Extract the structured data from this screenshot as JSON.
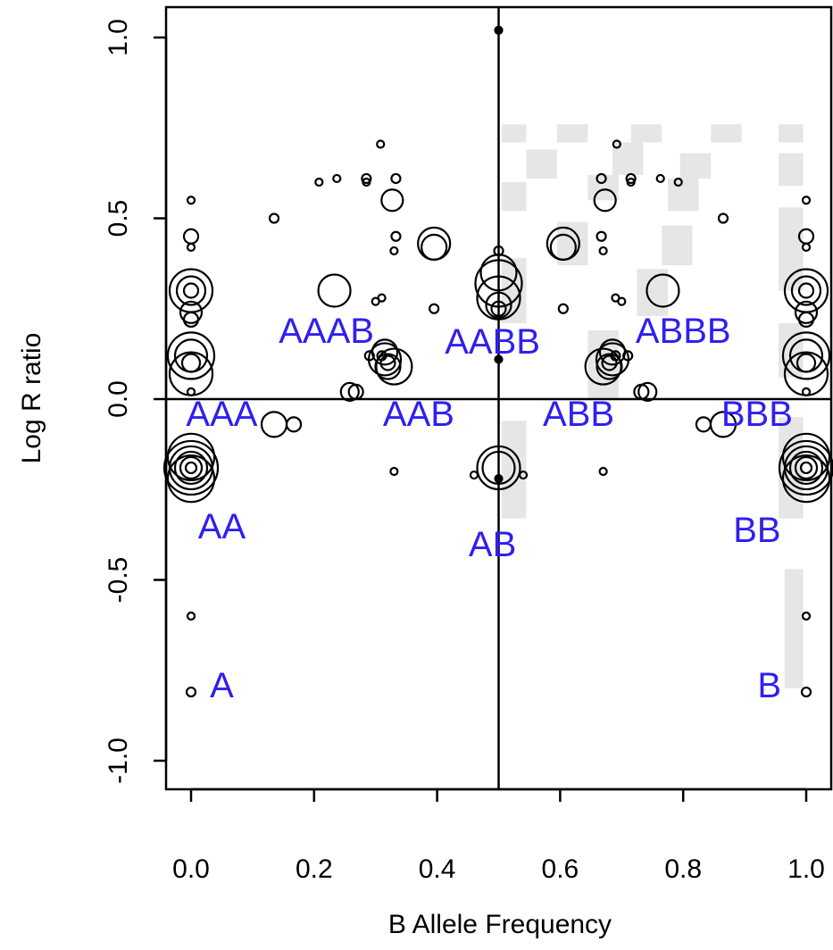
{
  "chart_data": {
    "type": "scatter",
    "title": "",
    "xlabel": "B Allele Frequency",
    "ylabel": "Log R ratio",
    "xlim": [
      -0.04,
      1.04
    ],
    "ylim": [
      -1.08,
      1.08
    ],
    "x_ticks": [
      0.0,
      0.2,
      0.4,
      0.6,
      0.8,
      1.0
    ],
    "x_tick_labels": [
      "0.0",
      "0.2",
      "0.4",
      "0.6",
      "0.8",
      "1.0"
    ],
    "y_ticks": [
      -1.0,
      -0.5,
      0.0,
      0.5,
      1.0
    ],
    "y_tick_labels": [
      "-1.0",
      "-0.5",
      "0.0",
      "0.5",
      "1.0"
    ],
    "reference_lines": {
      "x": 0.5,
      "y": 0.0
    },
    "colors": {
      "genotype_label": "#2f1ff0",
      "points": "#000000",
      "shading": "#e6e6e6",
      "axes": "#000000"
    },
    "genotype_labels": [
      {
        "text": "A",
        "x": 0.05,
        "y": -0.79
      },
      {
        "text": "B",
        "x": 0.94,
        "y": -0.79
      },
      {
        "text": "AA",
        "x": 0.05,
        "y": -0.35
      },
      {
        "text": "BB",
        "x": 0.92,
        "y": -0.36
      },
      {
        "text": "AB",
        "x": 0.49,
        "y": -0.4
      },
      {
        "text": "AAA",
        "x": 0.05,
        "y": -0.04
      },
      {
        "text": "BBB",
        "x": 0.92,
        "y": -0.04
      },
      {
        "text": "AAB",
        "x": 0.37,
        "y": -0.04
      },
      {
        "text": "ABB",
        "x": 0.63,
        "y": -0.04
      },
      {
        "text": "AAAB",
        "x": 0.22,
        "y": 0.19
      },
      {
        "text": "AABB",
        "x": 0.49,
        "y": 0.16
      },
      {
        "text": "ABBB",
        "x": 0.8,
        "y": 0.19
      }
    ],
    "shaded_bins": [
      {
        "x": [
          0.505,
          0.545
        ],
        "y": [
          0.71,
          0.76
        ]
      },
      {
        "x": [
          0.505,
          0.545
        ],
        "y": [
          0.52,
          0.6
        ]
      },
      {
        "x": [
          0.505,
          0.545
        ],
        "y": [
          0.21,
          0.39
        ]
      },
      {
        "x": [
          0.505,
          0.545
        ],
        "y": [
          -0.33,
          -0.06
        ]
      },
      {
        "x": [
          0.545,
          0.595
        ],
        "y": [
          0.61,
          0.69
        ]
      },
      {
        "x": [
          0.595,
          0.645
        ],
        "y": [
          0.71,
          0.76
        ]
      },
      {
        "x": [
          0.595,
          0.645
        ],
        "y": [
          0.37,
          0.49
        ]
      },
      {
        "x": [
          0.645,
          0.695
        ],
        "y": [
          0.55,
          0.62
        ]
      },
      {
        "x": [
          0.645,
          0.695
        ],
        "y": [
          0.0,
          0.19
        ]
      },
      {
        "x": [
          0.685,
          0.735
        ],
        "y": [
          0.62,
          0.71
        ]
      },
      {
        "x": [
          0.715,
          0.765
        ],
        "y": [
          0.71,
          0.76
        ]
      },
      {
        "x": [
          0.725,
          0.775
        ],
        "y": [
          0.23,
          0.36
        ]
      },
      {
        "x": [
          0.765,
          0.815
        ],
        "y": [
          0.37,
          0.48
        ]
      },
      {
        "x": [
          0.775,
          0.825
        ],
        "y": [
          0.52,
          0.61
        ]
      },
      {
        "x": [
          0.795,
          0.845
        ],
        "y": [
          0.61,
          0.68
        ]
      },
      {
        "x": [
          0.845,
          0.895
        ],
        "y": [
          0.71,
          0.76
        ]
      },
      {
        "x": [
          0.955,
          0.995
        ],
        "y": [
          0.71,
          0.76
        ]
      },
      {
        "x": [
          0.955,
          0.995
        ],
        "y": [
          0.59,
          0.68
        ]
      },
      {
        "x": [
          0.955,
          0.995
        ],
        "y": [
          0.3,
          0.53
        ]
      },
      {
        "x": [
          0.955,
          0.995
        ],
        "y": [
          0.06,
          0.21
        ]
      },
      {
        "x": [
          0.955,
          0.995
        ],
        "y": [
          -0.33,
          -0.05
        ]
      },
      {
        "x": [
          0.965,
          0.995
        ],
        "y": [
          -0.8,
          -0.47
        ]
      }
    ],
    "points": [
      {
        "x": 0.5,
        "y": 1.02,
        "r": 4,
        "filled": true
      },
      {
        "x": 0.0,
        "y": 0.55,
        "r": 4
      },
      {
        "x": 0.0,
        "y": 0.45,
        "r": 8
      },
      {
        "x": 0.0,
        "y": 0.42,
        "r": 4
      },
      {
        "x": 0.0,
        "y": 0.3,
        "r": 24
      },
      {
        "x": 0.0,
        "y": 0.3,
        "r": 16
      },
      {
        "x": 0.0,
        "y": 0.3,
        "r": 8
      },
      {
        "x": 0.0,
        "y": 0.24,
        "r": 12
      },
      {
        "x": 0.0,
        "y": 0.22,
        "r": 8
      },
      {
        "x": 0.0,
        "y": 0.12,
        "r": 26
      },
      {
        "x": 0.0,
        "y": 0.12,
        "r": 18
      },
      {
        "x": 0.0,
        "y": 0.1,
        "r": 10
      },
      {
        "x": 0.0,
        "y": 0.07,
        "r": 24
      },
      {
        "x": 0.0,
        "y": 0.02,
        "r": 4
      },
      {
        "x": 0.0,
        "y": -0.19,
        "r": 30
      },
      {
        "x": 0.0,
        "y": -0.19,
        "r": 24
      },
      {
        "x": 0.0,
        "y": -0.19,
        "r": 18
      },
      {
        "x": 0.0,
        "y": -0.19,
        "r": 12
      },
      {
        "x": 0.0,
        "y": -0.19,
        "r": 6
      },
      {
        "x": 0.0,
        "y": -0.16,
        "r": 26
      },
      {
        "x": 0.0,
        "y": -0.22,
        "r": 26
      },
      {
        "x": 0.0,
        "y": -0.6,
        "r": 4
      },
      {
        "x": 0.0,
        "y": -0.81,
        "r": 5
      },
      {
        "x": 1.0,
        "y": 0.55,
        "r": 4
      },
      {
        "x": 1.0,
        "y": 0.45,
        "r": 8
      },
      {
        "x": 1.0,
        "y": 0.42,
        "r": 4
      },
      {
        "x": 1.0,
        "y": 0.3,
        "r": 24
      },
      {
        "x": 1.0,
        "y": 0.3,
        "r": 16
      },
      {
        "x": 1.0,
        "y": 0.3,
        "r": 8
      },
      {
        "x": 1.0,
        "y": 0.24,
        "r": 12
      },
      {
        "x": 1.0,
        "y": 0.22,
        "r": 8
      },
      {
        "x": 1.0,
        "y": 0.12,
        "r": 26
      },
      {
        "x": 1.0,
        "y": 0.12,
        "r": 18
      },
      {
        "x": 1.0,
        "y": 0.1,
        "r": 10
      },
      {
        "x": 1.0,
        "y": 0.07,
        "r": 24
      },
      {
        "x": 1.0,
        "y": 0.02,
        "r": 4
      },
      {
        "x": 1.0,
        "y": -0.19,
        "r": 30
      },
      {
        "x": 1.0,
        "y": -0.19,
        "r": 24
      },
      {
        "x": 1.0,
        "y": -0.19,
        "r": 18
      },
      {
        "x": 1.0,
        "y": -0.19,
        "r": 12
      },
      {
        "x": 1.0,
        "y": -0.19,
        "r": 6
      },
      {
        "x": 1.0,
        "y": -0.16,
        "r": 26
      },
      {
        "x": 1.0,
        "y": -0.22,
        "r": 26
      },
      {
        "x": 1.0,
        "y": -0.6,
        "r": 4
      },
      {
        "x": 1.0,
        "y": -0.81,
        "r": 5
      },
      {
        "x": 0.5,
        "y": 0.41,
        "r": 5
      },
      {
        "x": 0.5,
        "y": 0.35,
        "r": 20
      },
      {
        "x": 0.5,
        "y": 0.32,
        "r": 26
      },
      {
        "x": 0.5,
        "y": 0.28,
        "r": 24
      },
      {
        "x": 0.5,
        "y": 0.26,
        "r": 14
      },
      {
        "x": 0.5,
        "y": 0.25,
        "r": 8
      },
      {
        "x": 0.5,
        "y": 0.11,
        "r": 4,
        "filled": true
      },
      {
        "x": 0.5,
        "y": -0.19,
        "r": 24
      },
      {
        "x": 0.5,
        "y": -0.19,
        "r": 18
      },
      {
        "x": 0.5,
        "y": -0.22,
        "r": 4,
        "filled": true
      },
      {
        "x": 0.46,
        "y": -0.21,
        "r": 4
      },
      {
        "x": 0.54,
        "y": -0.21,
        "r": 4
      },
      {
        "x": 0.315,
        "y": 0.13,
        "r": 14
      },
      {
        "x": 0.315,
        "y": 0.11,
        "r": 18
      },
      {
        "x": 0.32,
        "y": 0.09,
        "r": 14
      },
      {
        "x": 0.33,
        "y": 0.09,
        "r": 20
      },
      {
        "x": 0.32,
        "y": 0.1,
        "r": 8
      },
      {
        "x": 0.29,
        "y": 0.12,
        "r": 5
      },
      {
        "x": 0.31,
        "y": 0.12,
        "r": 5
      },
      {
        "x": 0.685,
        "y": 0.13,
        "r": 14
      },
      {
        "x": 0.685,
        "y": 0.11,
        "r": 18
      },
      {
        "x": 0.68,
        "y": 0.09,
        "r": 14
      },
      {
        "x": 0.67,
        "y": 0.09,
        "r": 20
      },
      {
        "x": 0.68,
        "y": 0.1,
        "r": 8
      },
      {
        "x": 0.71,
        "y": 0.12,
        "r": 5
      },
      {
        "x": 0.69,
        "y": 0.12,
        "r": 5
      },
      {
        "x": 0.395,
        "y": 0.43,
        "r": 18
      },
      {
        "x": 0.395,
        "y": 0.42,
        "r": 14
      },
      {
        "x": 0.605,
        "y": 0.43,
        "r": 18
      },
      {
        "x": 0.605,
        "y": 0.42,
        "r": 14
      },
      {
        "x": 0.233,
        "y": 0.3,
        "r": 18
      },
      {
        "x": 0.767,
        "y": 0.3,
        "r": 18
      },
      {
        "x": 0.327,
        "y": 0.55,
        "r": 12
      },
      {
        "x": 0.673,
        "y": 0.55,
        "r": 12
      },
      {
        "x": 0.258,
        "y": 0.02,
        "r": 10
      },
      {
        "x": 0.268,
        "y": 0.02,
        "r": 8
      },
      {
        "x": 0.742,
        "y": 0.02,
        "r": 10
      },
      {
        "x": 0.732,
        "y": 0.02,
        "r": 8
      },
      {
        "x": 0.135,
        "y": -0.07,
        "r": 14
      },
      {
        "x": 0.167,
        "y": -0.07,
        "r": 8
      },
      {
        "x": 0.865,
        "y": -0.07,
        "r": 14
      },
      {
        "x": 0.833,
        "y": -0.07,
        "r": 8
      },
      {
        "x": 0.135,
        "y": 0.5,
        "r": 5
      },
      {
        "x": 0.865,
        "y": 0.5,
        "r": 5
      },
      {
        "x": 0.308,
        "y": 0.705,
        "r": 4
      },
      {
        "x": 0.692,
        "y": 0.705,
        "r": 4
      },
      {
        "x": 0.208,
        "y": 0.6,
        "r": 4
      },
      {
        "x": 0.792,
        "y": 0.6,
        "r": 4
      },
      {
        "x": 0.237,
        "y": 0.61,
        "r": 4
      },
      {
        "x": 0.763,
        "y": 0.61,
        "r": 4
      },
      {
        "x": 0.285,
        "y": 0.61,
        "r": 5
      },
      {
        "x": 0.285,
        "y": 0.6,
        "r": 4
      },
      {
        "x": 0.715,
        "y": 0.61,
        "r": 5
      },
      {
        "x": 0.715,
        "y": 0.6,
        "r": 4
      },
      {
        "x": 0.333,
        "y": 0.61,
        "r": 5
      },
      {
        "x": 0.667,
        "y": 0.61,
        "r": 5
      },
      {
        "x": 0.333,
        "y": 0.45,
        "r": 5
      },
      {
        "x": 0.667,
        "y": 0.45,
        "r": 5
      },
      {
        "x": 0.33,
        "y": 0.41,
        "r": 4
      },
      {
        "x": 0.67,
        "y": 0.41,
        "r": 4
      },
      {
        "x": 0.395,
        "y": 0.25,
        "r": 5
      },
      {
        "x": 0.605,
        "y": 0.25,
        "r": 5
      },
      {
        "x": 0.3,
        "y": 0.27,
        "r": 4
      },
      {
        "x": 0.31,
        "y": 0.28,
        "r": 4
      },
      {
        "x": 0.7,
        "y": 0.27,
        "r": 4
      },
      {
        "x": 0.69,
        "y": 0.28,
        "r": 4
      },
      {
        "x": 0.33,
        "y": -0.2,
        "r": 4
      },
      {
        "x": 0.67,
        "y": -0.2,
        "r": 4
      }
    ]
  }
}
